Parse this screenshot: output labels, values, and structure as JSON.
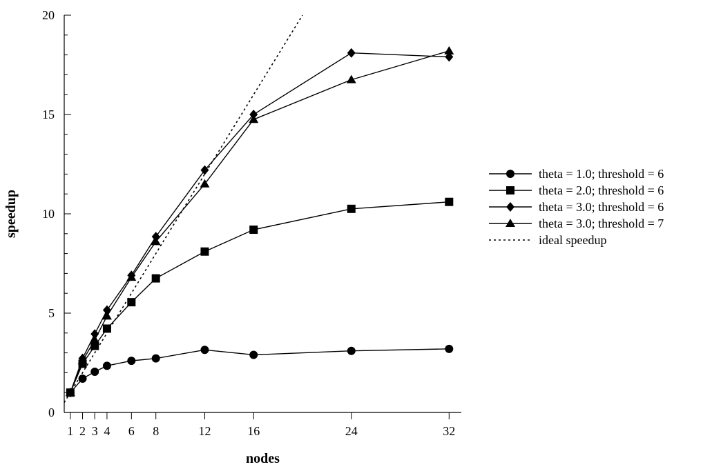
{
  "chart_data": {
    "type": "line",
    "xlabel": "nodes",
    "ylabel": "speedup",
    "x": [
      1,
      2,
      3,
      4,
      6,
      8,
      12,
      16,
      24,
      32
    ],
    "x_tick_labels": [
      "1",
      "2",
      "3",
      "4",
      "6",
      "8",
      "12",
      "16",
      "24",
      "32"
    ],
    "xlim": [
      0.5,
      33
    ],
    "ylim": [
      0,
      20
    ],
    "y_ticks": [
      0,
      5,
      10,
      15,
      20
    ],
    "y_tick_labels": [
      "0",
      "5",
      "10",
      "15",
      "20"
    ],
    "grid": false,
    "legend_position": "right",
    "series": [
      {
        "name": "theta = 1.0; threshold = 6",
        "marker": "circle",
        "line": "solid",
        "values": [
          1.0,
          1.7,
          2.05,
          2.35,
          2.6,
          2.72,
          3.15,
          2.9,
          3.1,
          3.2
        ]
      },
      {
        "name": "theta = 2.0; threshold = 6",
        "marker": "square",
        "line": "solid",
        "values": [
          1.0,
          2.45,
          3.35,
          4.22,
          5.55,
          6.75,
          8.1,
          9.2,
          10.25,
          10.6
        ]
      },
      {
        "name": "theta = 3.0; threshold = 6",
        "marker": "diamond",
        "line": "solid",
        "values": [
          1.0,
          2.72,
          3.95,
          5.15,
          6.9,
          8.85,
          12.2,
          15.0,
          18.1,
          17.9
        ]
      },
      {
        "name": "theta = 3.0; threshold = 7",
        "marker": "triangle",
        "line": "solid",
        "values": [
          1.0,
          2.6,
          3.65,
          4.85,
          6.8,
          8.6,
          11.5,
          14.75,
          16.75,
          18.2
        ]
      },
      {
        "name": "ideal speedup",
        "marker": "none",
        "line": "dotted",
        "x": [
          0.5,
          20.0
        ],
        "values": [
          0.5,
          20.0
        ]
      }
    ]
  }
}
